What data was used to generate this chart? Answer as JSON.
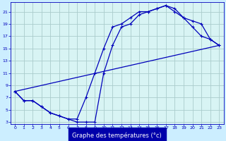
{
  "background_color": "#cceeff",
  "plot_bg_color": "#d8f4f4",
  "line_color": "#0000bb",
  "grid_color": "#aacccc",
  "xlabel": "Graphe des températures (°c)",
  "xlabel_color": "#ffffff",
  "xlabel_bg": "#0000aa",
  "ylim": [
    3,
    22
  ],
  "xlim": [
    -0.5,
    23.5
  ],
  "yticks": [
    3,
    5,
    7,
    9,
    11,
    13,
    15,
    17,
    19,
    21
  ],
  "xticks": [
    0,
    1,
    2,
    3,
    4,
    5,
    6,
    7,
    8,
    9,
    10,
    11,
    12,
    13,
    14,
    15,
    16,
    17,
    18,
    19,
    20,
    21,
    22,
    23
  ],
  "curve1_x": [
    0,
    1,
    2,
    3,
    4,
    5,
    6,
    7,
    8,
    9,
    10,
    11,
    12,
    13,
    14,
    15,
    16,
    17,
    18,
    19,
    20,
    21,
    22,
    23
  ],
  "curve1_y": [
    8.0,
    6.5,
    6.5,
    5.5,
    4.5,
    4.0,
    3.5,
    3.0,
    3.0,
    3.0,
    11.0,
    15.5,
    18.5,
    19.0,
    20.5,
    21.0,
    21.5,
    22.0,
    21.5,
    20.0,
    18.5,
    17.0,
    16.5,
    15.5
  ],
  "curve2_x": [
    0,
    1,
    2,
    3,
    4,
    5,
    6,
    7,
    8,
    9,
    10,
    11,
    12,
    13,
    14,
    15,
    16,
    17,
    18,
    19,
    20,
    21,
    22,
    23
  ],
  "curve2_y": [
    8.0,
    6.5,
    6.5,
    5.5,
    4.5,
    4.0,
    3.5,
    3.5,
    7.0,
    11.0,
    15.0,
    18.5,
    19.0,
    20.0,
    21.0,
    21.0,
    21.5,
    22.0,
    21.0,
    20.0,
    19.5,
    19.0,
    16.5,
    15.5
  ],
  "curve3_x": [
    0,
    23
  ],
  "curve3_y": [
    8.0,
    15.5
  ]
}
